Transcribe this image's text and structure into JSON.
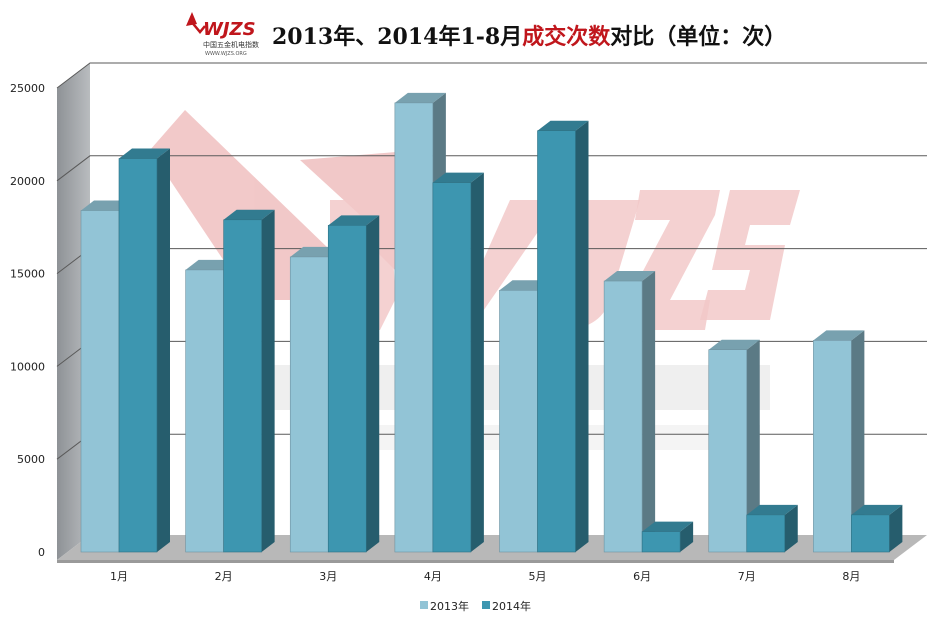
{
  "logo": {
    "letters": "WJZS",
    "caption": "中国五金机电指数",
    "url_text": "WWW.WJZS.ORG"
  },
  "title": {
    "part1": "2013年、2014年1-8月",
    "part2": "成交次数",
    "part3": "对比（单位：次）"
  },
  "colors": {
    "series_2013": "#92C4D6",
    "series_2014": "#3D96B0",
    "title_dark": "#111111",
    "title_highlight": "#C0161C",
    "wall": "#9FA3A7",
    "floor": "#B8B8B8",
    "grid": "#5a5a5a",
    "watermark": "#E79C9C"
  },
  "chart_data": {
    "type": "bar",
    "categories": [
      "1月",
      "2月",
      "3月",
      "4月",
      "5月",
      "6月",
      "7月",
      "8月"
    ],
    "series": [
      {
        "name": "2013年",
        "values": [
          18400,
          15200,
          15900,
          24200,
          14100,
          14600,
          10900,
          11400
        ]
      },
      {
        "name": "2014年",
        "values": [
          21200,
          17900,
          17600,
          19900,
          22700,
          1100,
          2000,
          2000
        ]
      }
    ],
    "ylim": [
      0,
      25000
    ],
    "yticks": [
      0,
      5000,
      10000,
      15000,
      20000,
      25000
    ],
    "grid": true,
    "legend": "bottom"
  }
}
